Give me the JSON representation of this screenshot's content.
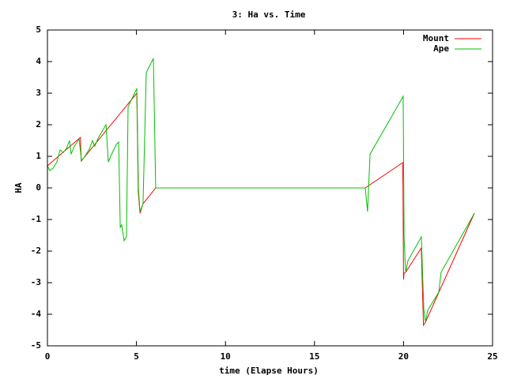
{
  "chart_data": {
    "type": "line",
    "title": "3: Ha vs. Time",
    "x_label": "time (Elapse Hours)",
    "y_label": "HA",
    "xlim": [
      0,
      25
    ],
    "ylim": [
      -5,
      5
    ],
    "xticks": [
      0,
      5,
      10,
      15,
      20,
      25
    ],
    "yticks": [
      -5,
      -4,
      -3,
      -2,
      -1,
      0,
      1,
      2,
      3,
      4,
      5
    ],
    "grid": false,
    "legend": "top-right",
    "series": [
      {
        "name": "Mount",
        "color": "#ff0000",
        "x": [
          0,
          1.85,
          1.9,
          2.04,
          5.02,
          5.1,
          5.2,
          5.37,
          6.08,
          17.85,
          19.95,
          19.97,
          20.0,
          20.03,
          20.12,
          21.0,
          21.05,
          21.12,
          21.23,
          23.98
        ],
        "values": [
          0.7,
          1.6,
          0.85,
          0.95,
          3.0,
          -0.1,
          -0.8,
          -0.5,
          0,
          0,
          0.8,
          0.05,
          -2.9,
          -2.7,
          -2.67,
          -1.9,
          -3.0,
          -4.35,
          -4.25,
          -0.8
        ]
      },
      {
        "name": "Ape",
        "color": "#00c000",
        "x": [
          0,
          0.13,
          0.31,
          0.53,
          0.71,
          0.89,
          1.07,
          1.24,
          1.33,
          1.51,
          1.78,
          1.91,
          2.04,
          2.35,
          2.53,
          2.66,
          2.84,
          3.15,
          3.29,
          3.42,
          3.55,
          3.86,
          4.0,
          4.09,
          4.17,
          4.31,
          4.44,
          4.53,
          5.02,
          5.11,
          5.2,
          5.37,
          5.55,
          5.95,
          6.08,
          17.85,
          17.98,
          18.12,
          19.98,
          20.03,
          20.12,
          20.25,
          21.0,
          21.14,
          21.23,
          21.36,
          21.98,
          22.11,
          23.98
        ],
        "values": [
          0.7,
          0.55,
          0.62,
          0.82,
          1.2,
          1.12,
          1.25,
          1.5,
          1.07,
          1.32,
          1.55,
          0.87,
          0.95,
          1.22,
          1.5,
          1.32,
          1.57,
          1.87,
          2.0,
          0.82,
          1.0,
          1.37,
          1.45,
          -1.25,
          -1.17,
          -1.67,
          -1.55,
          2.57,
          3.15,
          0,
          -0.75,
          -0.5,
          3.65,
          4.1,
          0,
          0,
          -0.75,
          1.07,
          2.9,
          -1.55,
          -2.67,
          -2.3,
          -1.55,
          -3.85,
          -4.25,
          -3.87,
          -3.3,
          -2.67,
          -0.8
        ]
      }
    ]
  }
}
